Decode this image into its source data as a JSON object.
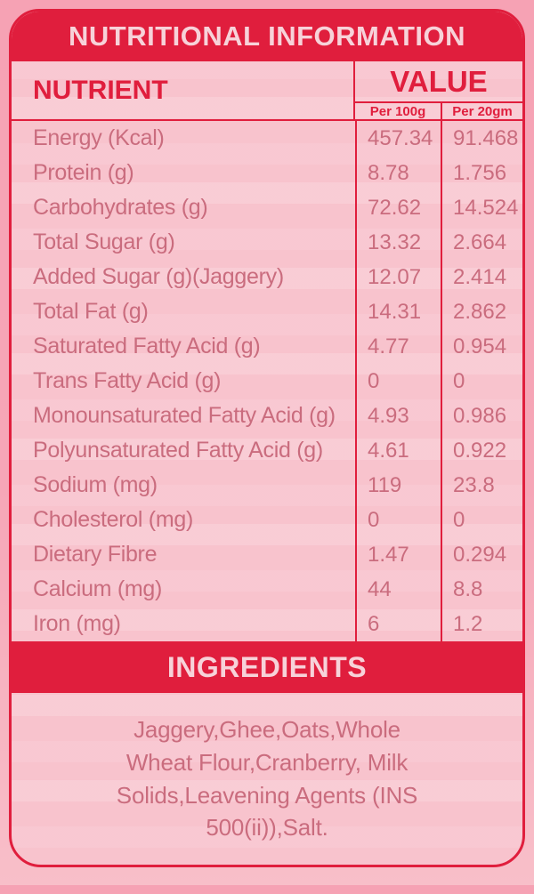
{
  "title": "NUTRITIONAL INFORMATION",
  "colors": {
    "accent_red": "#e01e3d",
    "banner_text_pink": "#f7d2d9",
    "outer_background_pink": "#f6a2b4",
    "card_background_pink": "#f8c3cd",
    "body_text_rose": "#ca6c7e"
  },
  "table": {
    "nutrient_header": "NUTRIENT",
    "value_header": "VALUE",
    "sub_headers": {
      "per_100g": "Per 100g",
      "per_20gm": "Per 20gm"
    },
    "rows": [
      {
        "nutrient": "Energy (Kcal)",
        "per_100g": "457.34",
        "per_20gm": "91.468"
      },
      {
        "nutrient": "Protein (g)",
        "per_100g": "8.78",
        "per_20gm": "1.756"
      },
      {
        "nutrient": "Carbohydrates (g)",
        "per_100g": "72.62",
        "per_20gm": "14.524"
      },
      {
        "nutrient": "Total Sugar (g)",
        "per_100g": "13.32",
        "per_20gm": "2.664"
      },
      {
        "nutrient": "Added Sugar (g)(Jaggery)",
        "per_100g": "12.07",
        "per_20gm": "2.414"
      },
      {
        "nutrient": "Total Fat (g)",
        "per_100g": "14.31",
        "per_20gm": "2.862"
      },
      {
        "nutrient": "Saturated Fatty Acid (g)",
        "per_100g": "4.77",
        "per_20gm": "0.954"
      },
      {
        "nutrient": "Trans Fatty Acid (g)",
        "per_100g": "0",
        "per_20gm": "0"
      },
      {
        "nutrient": "Monounsaturated Fatty Acid (g)",
        "per_100g": "4.93",
        "per_20gm": "0.986"
      },
      {
        "nutrient": "Polyunsaturated Fatty Acid (g)",
        "per_100g": "4.61",
        "per_20gm": "0.922"
      },
      {
        "nutrient": "Sodium (mg)",
        "per_100g": "119",
        "per_20gm": "23.8"
      },
      {
        "nutrient": "Cholesterol (mg)",
        "per_100g": "0",
        "per_20gm": "0"
      },
      {
        "nutrient": "Dietary Fibre",
        "per_100g": "1.47",
        "per_20gm": "0.294"
      },
      {
        "nutrient": "Calcium (mg)",
        "per_100g": "44",
        "per_20gm": "8.8"
      },
      {
        "nutrient": "Iron (mg)",
        "per_100g": "6",
        "per_20gm": "1.2"
      }
    ]
  },
  "ingredients": {
    "header": "INGREDIENTS",
    "text": "Jaggery,Ghee,Oats,Whole\nWheat Flour,Cranberry, Milk\nSolids,Leavening Agents (INS\n500(ii)),Salt."
  }
}
